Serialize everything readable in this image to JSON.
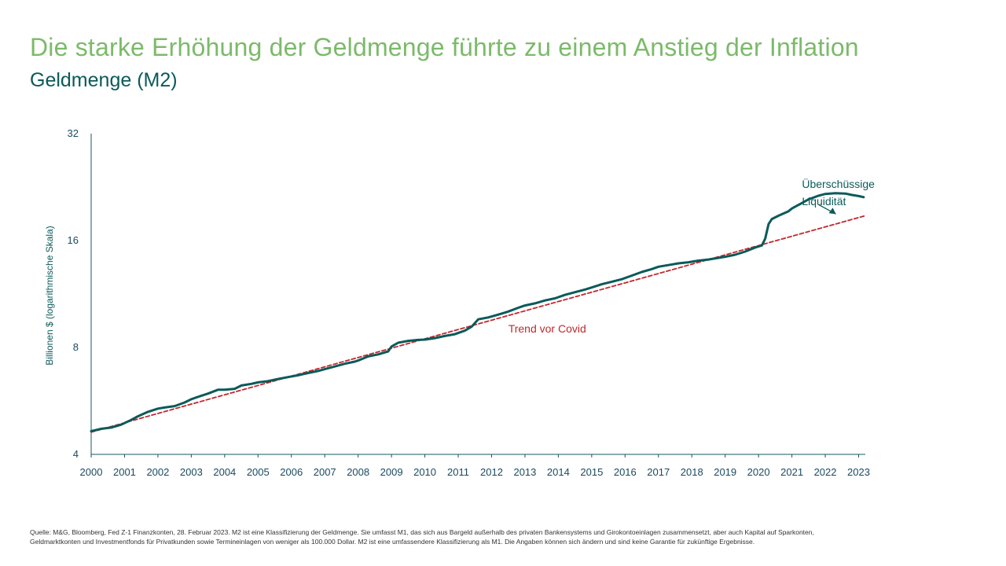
{
  "header": {
    "title": "Die starke Erhöhung der Geldmenge führte zu einem Anstieg der Inflation",
    "subtitle": "Geldmenge (M2)"
  },
  "footnote": "Quelle: M&G, Bloomberg, Fed Z-1 Finanzkonten, 28. Februar 2023. M2 ist eine Klassifizierung der Geldmenge. Sie umfasst M1, das sich aus Bargeld außerhalb des privaten Bankensystems und Girokontoeinlagen zusammensetzt, aber auch Kapital auf Sparkonten, Geldmarktkonten und Investmentfonds für Privatkunden sowie Termineinlagen von weniger als 100.000 Dollar. M2 ist eine umfassendere Klassifizierung als M1. Die Angaben können sich ändern und sind keine Garantie für zukünftige Ergebnisse.",
  "chart_data": {
    "type": "line",
    "ylabel": "Billionen $ (logarithmische Skala)",
    "xlabel": "",
    "y_scale": "log2",
    "ylim": [
      4,
      32
    ],
    "yticks": [
      4,
      8,
      16,
      32
    ],
    "xlim": [
      2000,
      2023.2
    ],
    "xticks": [
      2000,
      2001,
      2002,
      2003,
      2004,
      2005,
      2006,
      2007,
      2008,
      2009,
      2010,
      2011,
      2012,
      2013,
      2014,
      2015,
      2016,
      2017,
      2018,
      2019,
      2020,
      2021,
      2022,
      2023
    ],
    "grid": false,
    "legend": "none",
    "series": [
      {
        "color": "#0b5a5a",
        "style": "solid",
        "points": [
          [
            2000.0,
            4.65
          ],
          [
            2000.3,
            4.72
          ],
          [
            2000.6,
            4.76
          ],
          [
            2000.9,
            4.85
          ],
          [
            2001.2,
            5.0
          ],
          [
            2001.4,
            5.12
          ],
          [
            2001.7,
            5.27
          ],
          [
            2002.0,
            5.38
          ],
          [
            2002.2,
            5.42
          ],
          [
            2002.5,
            5.47
          ],
          [
            2002.8,
            5.6
          ],
          [
            2003.0,
            5.72
          ],
          [
            2003.3,
            5.85
          ],
          [
            2003.5,
            5.93
          ],
          [
            2003.8,
            6.08
          ],
          [
            2004.0,
            6.08
          ],
          [
            2004.3,
            6.12
          ],
          [
            2004.5,
            6.25
          ],
          [
            2004.8,
            6.32
          ],
          [
            2005.0,
            6.38
          ],
          [
            2005.3,
            6.43
          ],
          [
            2005.6,
            6.52
          ],
          [
            2005.9,
            6.6
          ],
          [
            2006.2,
            6.68
          ],
          [
            2006.5,
            6.78
          ],
          [
            2006.8,
            6.87
          ],
          [
            2007.0,
            6.95
          ],
          [
            2007.3,
            7.07
          ],
          [
            2007.6,
            7.2
          ],
          [
            2007.9,
            7.3
          ],
          [
            2008.0,
            7.35
          ],
          [
            2008.3,
            7.55
          ],
          [
            2008.6,
            7.65
          ],
          [
            2008.9,
            7.8
          ],
          [
            2009.0,
            8.05
          ],
          [
            2009.2,
            8.25
          ],
          [
            2009.5,
            8.35
          ],
          [
            2009.8,
            8.4
          ],
          [
            2010.0,
            8.42
          ],
          [
            2010.3,
            8.5
          ],
          [
            2010.6,
            8.62
          ],
          [
            2010.9,
            8.72
          ],
          [
            2011.2,
            8.92
          ],
          [
            2011.4,
            9.15
          ],
          [
            2011.6,
            9.6
          ],
          [
            2011.9,
            9.72
          ],
          [
            2012.2,
            9.9
          ],
          [
            2012.5,
            10.1
          ],
          [
            2012.8,
            10.35
          ],
          [
            2013.0,
            10.5
          ],
          [
            2013.3,
            10.65
          ],
          [
            2013.6,
            10.85
          ],
          [
            2013.9,
            11.0
          ],
          [
            2014.2,
            11.25
          ],
          [
            2014.5,
            11.45
          ],
          [
            2014.8,
            11.65
          ],
          [
            2015.0,
            11.8
          ],
          [
            2015.3,
            12.05
          ],
          [
            2015.6,
            12.25
          ],
          [
            2015.9,
            12.45
          ],
          [
            2016.2,
            12.75
          ],
          [
            2016.5,
            13.05
          ],
          [
            2016.8,
            13.3
          ],
          [
            2017.0,
            13.5
          ],
          [
            2017.3,
            13.65
          ],
          [
            2017.6,
            13.8
          ],
          [
            2017.9,
            13.9
          ],
          [
            2018.2,
            14.05
          ],
          [
            2018.5,
            14.15
          ],
          [
            2018.8,
            14.3
          ],
          [
            2019.0,
            14.4
          ],
          [
            2019.3,
            14.6
          ],
          [
            2019.6,
            14.9
          ],
          [
            2019.9,
            15.3
          ],
          [
            2020.1,
            15.5
          ],
          [
            2020.2,
            16.2
          ],
          [
            2020.3,
            17.8
          ],
          [
            2020.4,
            18.4
          ],
          [
            2020.6,
            18.8
          ],
          [
            2020.9,
            19.35
          ],
          [
            2021.0,
            19.7
          ],
          [
            2021.3,
            20.4
          ],
          [
            2021.5,
            20.9
          ],
          [
            2021.8,
            21.4
          ],
          [
            2022.0,
            21.65
          ],
          [
            2022.3,
            21.75
          ],
          [
            2022.6,
            21.7
          ],
          [
            2022.8,
            21.5
          ],
          [
            2023.0,
            21.35
          ],
          [
            2023.15,
            21.2
          ]
        ]
      },
      {
        "name": "Trend vor Covid",
        "color": "#c0282d",
        "style": "dashed",
        "points": [
          [
            2000.0,
            4.62
          ],
          [
            2023.2,
            18.8
          ]
        ]
      }
    ],
    "annotations": [
      {
        "text": "Trend vor Covid",
        "x": 2012.5,
        "y": 8.82,
        "color": "#c0282d"
      },
      {
        "text_lines": [
          "Überschüssige",
          "Liquidität"
        ],
        "x": 2021.3,
        "y": 22.5,
        "color": "#0b5a5a",
        "arrow_to": [
          2021.8,
          20.2
        ]
      }
    ]
  }
}
